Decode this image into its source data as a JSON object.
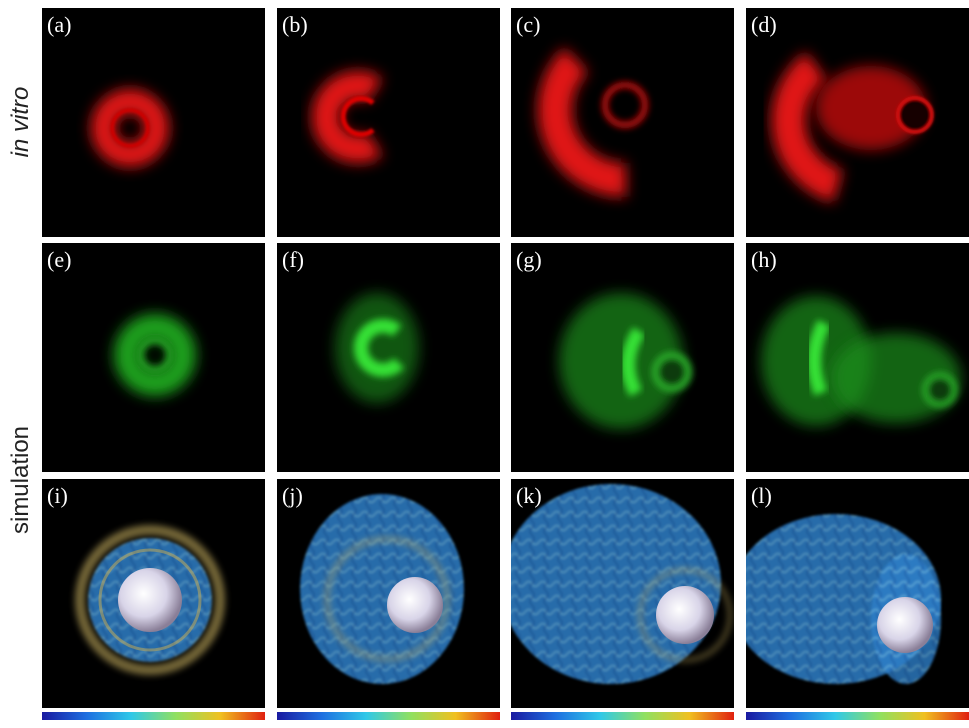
{
  "row_labels": {
    "top": "in vitro",
    "bottom": "simulation"
  },
  "panels": [
    "(a)",
    "(b)",
    "(c)",
    "(d)",
    "(e)",
    "(f)",
    "(g)",
    "(h)",
    "(i)",
    "(j)",
    "(k)",
    "(l)"
  ]
}
